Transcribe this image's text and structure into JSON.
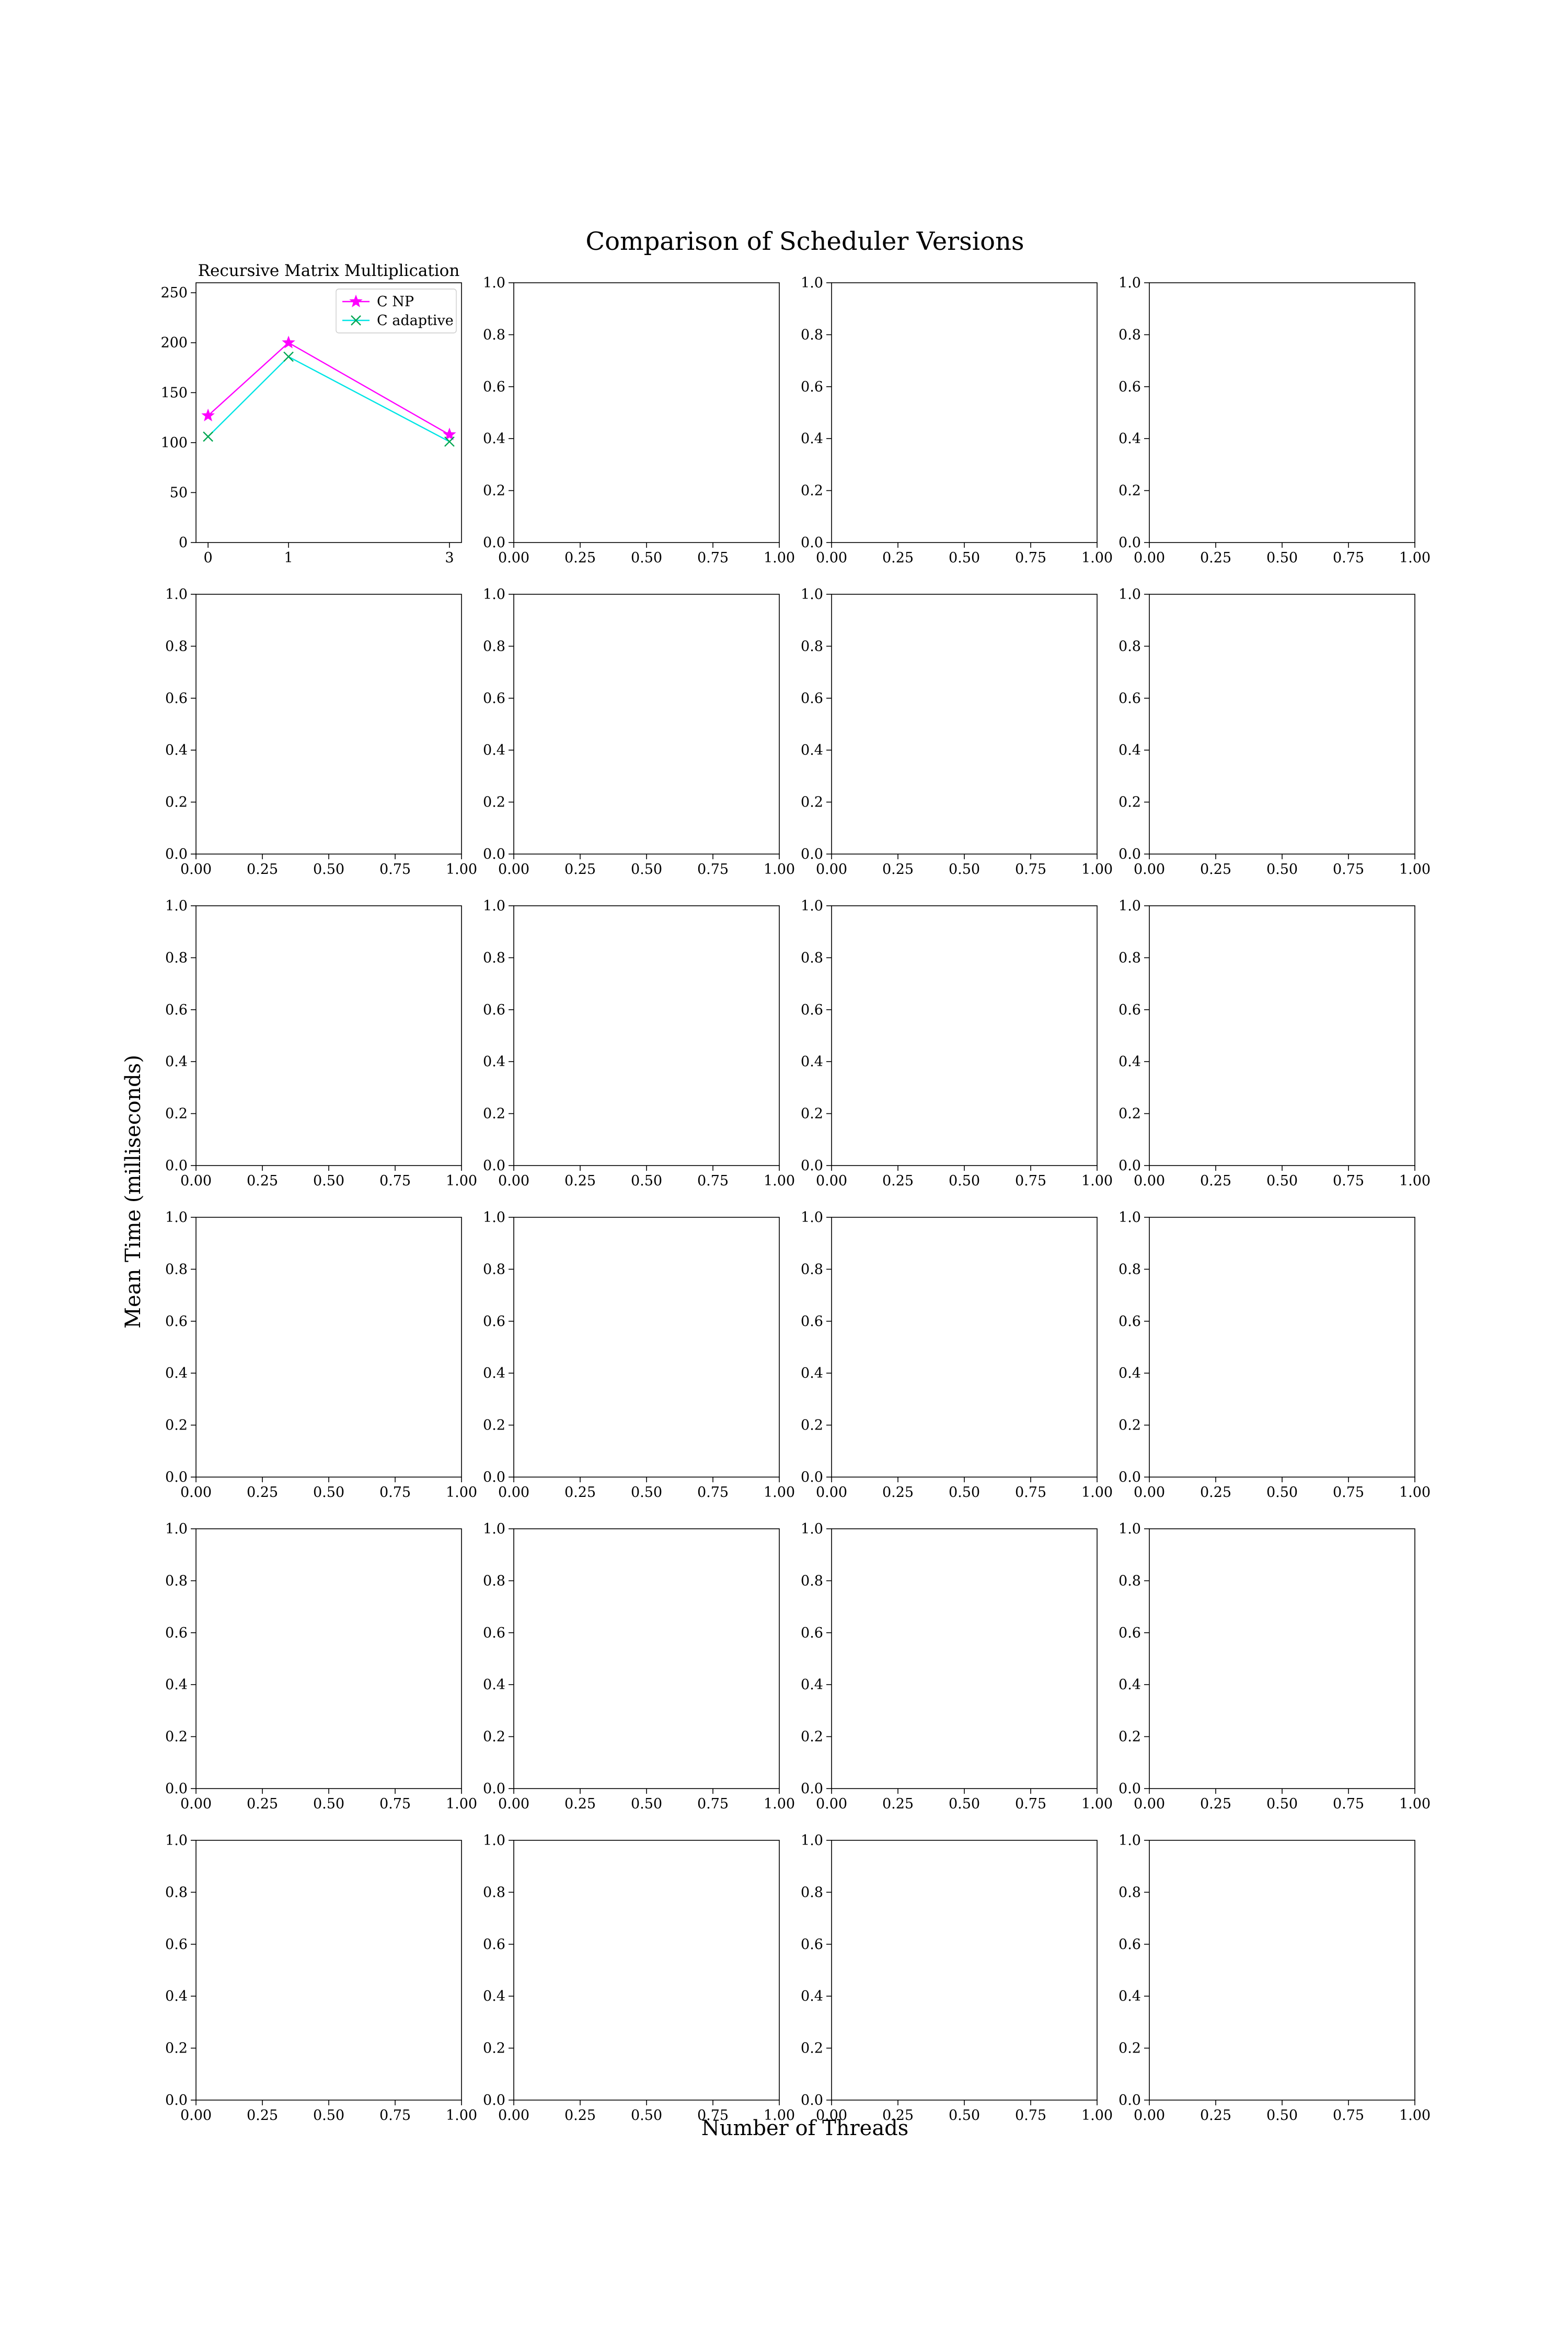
{
  "figure": {
    "suptitle": "Comparison of Scheduler Versions",
    "supxlabel": "Number of Threads",
    "supylabel": "Mean Time (milliseconds)",
    "grid_rows": 6,
    "grid_cols": 4,
    "background": "#ffffff"
  },
  "chart_data": [
    {
      "type": "line",
      "title": "Recursive Matrix Multiplication",
      "x": [
        0,
        1,
        3
      ],
      "xticks": [
        "0",
        "1",
        "3"
      ],
      "xlim": [
        -0.15,
        3.15
      ],
      "ylim": [
        0,
        260
      ],
      "yticks": [
        "0",
        "50",
        "100",
        "150",
        "200",
        "250"
      ],
      "grid": false,
      "legend_position": "top-right",
      "series": [
        {
          "name": "C NP",
          "values": [
            127,
            200,
            108
          ],
          "color": "#ff00ff",
          "marker": "star"
        },
        {
          "name": "C adaptive",
          "values": [
            106,
            186,
            101
          ],
          "color": "#00e5e5",
          "marker": "x",
          "marker_color": "#00a651"
        }
      ]
    },
    {
      "type": "empty",
      "xlim": [
        0,
        1
      ],
      "ylim": [
        0,
        1
      ],
      "xticks": [
        "0.00",
        "0.25",
        "0.50",
        "0.75",
        "1.00"
      ],
      "yticks": [
        "0.0",
        "0.2",
        "0.4",
        "0.6",
        "0.8",
        "1.0"
      ],
      "count": 23
    }
  ]
}
